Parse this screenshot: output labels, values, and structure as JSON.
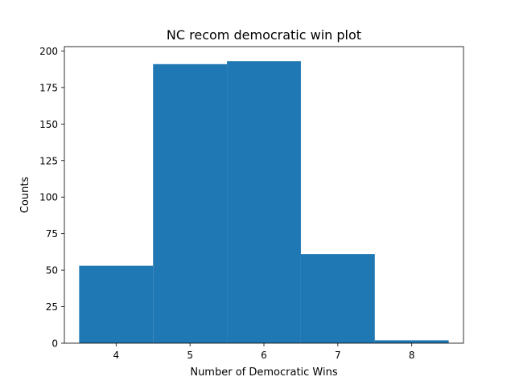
{
  "chart_data": {
    "type": "bar",
    "title": "NC recom democratic win plot",
    "xlabel": "Number of Democratic Wins",
    "ylabel": "Counts",
    "bins": [
      {
        "from": 3.5,
        "to": 4.5,
        "count": 53
      },
      {
        "from": 4.5,
        "to": 5.5,
        "count": 191
      },
      {
        "from": 5.5,
        "to": 6.5,
        "count": 193
      },
      {
        "from": 6.5,
        "to": 7.5,
        "count": 61
      },
      {
        "from": 7.5,
        "to": 8.5,
        "count": 2
      }
    ],
    "xlim": [
      3.3,
      8.7
    ],
    "ylim": [
      0,
      203
    ],
    "xticks": [
      "4",
      "5",
      "6",
      "7",
      "8"
    ],
    "yticks": [
      "0",
      "25",
      "50",
      "75",
      "100",
      "125",
      "150",
      "175",
      "200"
    ],
    "bar_color": "#1f77b4",
    "grid": false
  }
}
